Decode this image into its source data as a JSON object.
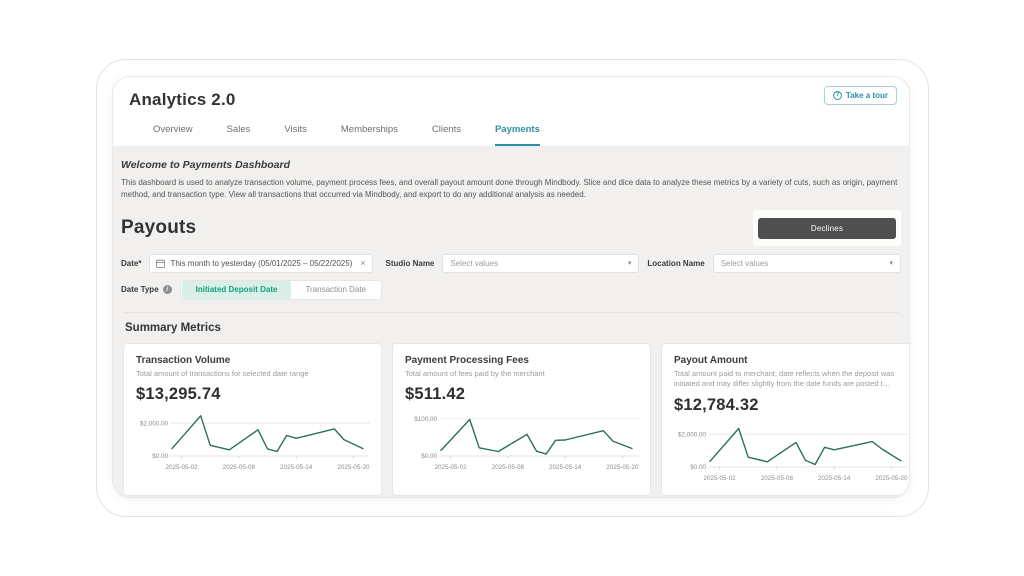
{
  "app": {
    "title": "Analytics 2.0",
    "tour_label": "Take a tour"
  },
  "icons": {
    "help": "?",
    "clear": "×",
    "chevron_down": "▾",
    "info": "i"
  },
  "tabs": [
    {
      "label": "Overview",
      "active": false
    },
    {
      "label": "Sales",
      "active": false
    },
    {
      "label": "Visits",
      "active": false
    },
    {
      "label": "Memberships",
      "active": false
    },
    {
      "label": "Clients",
      "active": false
    },
    {
      "label": "Payments",
      "active": true
    }
  ],
  "welcome": {
    "title": "Welcome to Payments Dashboard",
    "body": "This dashboard is used to analyze transaction volume, payment process fees, and overall payout amount done through Mindbody. Slice and dice data to analyze these metrics by a variety of cuts, such as origin, payment method, and transaction type. View all transactions that occurred via Mindbody, and export to do any additional analysis as needed."
  },
  "payouts": {
    "heading": "Payouts",
    "declines_button": "Declines"
  },
  "filters": {
    "date_label": "Date",
    "date_required_mark": "*",
    "date_value": "This month to yesterday (05/01/2025 – 05/22/2025)",
    "studio_label": "Studio Name",
    "studio_placeholder": "Select values",
    "location_label": "Location Name",
    "location_placeholder": "Select values",
    "date_type_label": "Date Type",
    "date_type_options": [
      {
        "label": "Initiated Deposit Date",
        "selected": true
      },
      {
        "label": "Transaction Date",
        "selected": false
      }
    ]
  },
  "summary": {
    "heading": "Summary Metrics"
  },
  "cards": [
    {
      "title": "Transaction Volume",
      "subtitle": "Total amount of transactions for selected date range",
      "value": "$13,295.74"
    },
    {
      "title": "Payment Processing Fees",
      "subtitle": "Total amount of fees paid by the merchant",
      "value": "$511.42"
    },
    {
      "title": "Payout Amount",
      "subtitle": "Total amount paid to merchant; date reflects when the deposit was initiated and may differ slightly from the date funds are posted t…",
      "value": "$12,784.32"
    }
  ],
  "chart_data": [
    {
      "type": "line",
      "title": "Transaction Volume",
      "dates": [
        "2025-05-01",
        "2025-05-04",
        "2025-05-05",
        "2025-05-07",
        "2025-05-10",
        "2025-05-11",
        "2025-05-12",
        "2025-05-13",
        "2025-05-14",
        "2025-05-18",
        "2025-05-19",
        "2025-05-21"
      ],
      "values": [
        450,
        2450,
        650,
        380,
        1600,
        430,
        280,
        1250,
        1080,
        1650,
        1000,
        450
      ],
      "xtick_labels": [
        "2025-05-02",
        "2025-05-08",
        "2025-05-14",
        "2025-05-20"
      ],
      "ytick_labels": [
        "$0.00",
        "$2,000.00"
      ],
      "ytick_values": [
        0,
        2000
      ],
      "ylim": [
        0,
        2500
      ],
      "xlim_days": [
        1,
        21
      ],
      "grid": true,
      "line_color": "#2a7257"
    },
    {
      "type": "line",
      "title": "Payment Processing Fees",
      "dates": [
        "2025-05-01",
        "2025-05-04",
        "2025-05-05",
        "2025-05-07",
        "2025-05-10",
        "2025-05-11",
        "2025-05-12",
        "2025-05-13",
        "2025-05-14",
        "2025-05-18",
        "2025-05-19",
        "2025-05-21"
      ],
      "values": [
        15,
        98,
        22,
        12,
        58,
        13,
        5,
        42,
        43,
        68,
        40,
        20
      ],
      "xtick_labels": [
        "2025-05-02",
        "2025-05-08",
        "2025-05-14",
        "2025-05-20"
      ],
      "ytick_labels": [
        "$0.00",
        "$100.00"
      ],
      "ytick_values": [
        0,
        100
      ],
      "ylim": [
        0,
        110
      ],
      "xlim_days": [
        1,
        21
      ],
      "grid": true,
      "line_color": "#2a7257"
    },
    {
      "type": "line",
      "title": "Payout Amount",
      "dates": [
        "2025-05-01",
        "2025-05-04",
        "2025-05-05",
        "2025-05-07",
        "2025-05-10",
        "2025-05-11",
        "2025-05-12",
        "2025-05-13",
        "2025-05-14",
        "2025-05-18",
        "2025-05-19",
        "2025-05-21"
      ],
      "values": [
        350,
        2350,
        600,
        320,
        1500,
        400,
        150,
        1200,
        1050,
        1550,
        1100,
        380
      ],
      "xtick_labels": [
        "2025-05-02",
        "2025-05-08",
        "2025-05-14",
        "2025-05-20"
      ],
      "ytick_labels": [
        "$0.00",
        "$2,000.00"
      ],
      "ytick_values": [
        0,
        2000
      ],
      "ylim": [
        0,
        2500
      ],
      "xlim_days": [
        1,
        21
      ],
      "grid": true,
      "line_color": "#2a7257"
    }
  ],
  "colors": {
    "accent_teal": "#2e8fa3",
    "toggle_green": "#14a07b",
    "toggle_green_bg": "#daefe8",
    "chart_line": "#2a7257",
    "declines_button_bg": "#4f4f4f",
    "content_bg": "#f1f0ee"
  }
}
